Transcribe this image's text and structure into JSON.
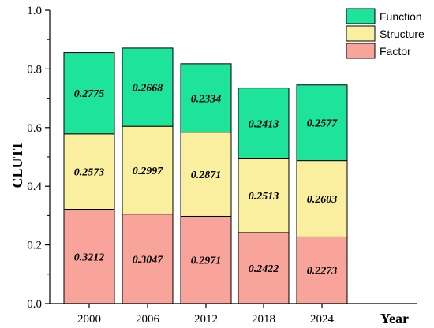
{
  "chart_data": {
    "type": "bar",
    "stacked": true,
    "categories": [
      "2000",
      "2006",
      "2012",
      "2018",
      "2024"
    ],
    "series": [
      {
        "name": "Factor",
        "color": "#f8a49b",
        "values": [
          0.3212,
          0.3047,
          0.2971,
          0.2422,
          0.2273
        ]
      },
      {
        "name": "Structure",
        "color": "#f9ef9e",
        "values": [
          0.2573,
          0.2997,
          0.2871,
          0.2513,
          0.2603
        ]
      },
      {
        "name": "Function",
        "color": "#1ee39b",
        "values": [
          0.2775,
          0.2668,
          0.2334,
          0.2413,
          0.2577
        ]
      }
    ],
    "data_labels": [
      [
        "0.3212",
        "0.3047",
        "0.2971",
        "0.2422",
        "0.2273"
      ],
      [
        "0.2573",
        "0.2997",
        "0.2871",
        "0.2513",
        "0.2603"
      ],
      [
        "0.2775",
        "0.2668",
        "0.2334",
        "0.2413",
        "0.2577"
      ]
    ],
    "xlabel": "Year",
    "ylabel": "CLUTI",
    "ylim": [
      0,
      1.0
    ],
    "yticks": [
      "0.0",
      "0.2",
      "0.4",
      "0.6",
      "0.8",
      "1.0"
    ],
    "ytick_values": [
      0,
      0.2,
      0.4,
      0.6,
      0.8,
      1.0
    ],
    "legend_order": [
      "Function",
      "Structure",
      "Factor"
    ],
    "legend_position": "top-right",
    "grid": false
  }
}
